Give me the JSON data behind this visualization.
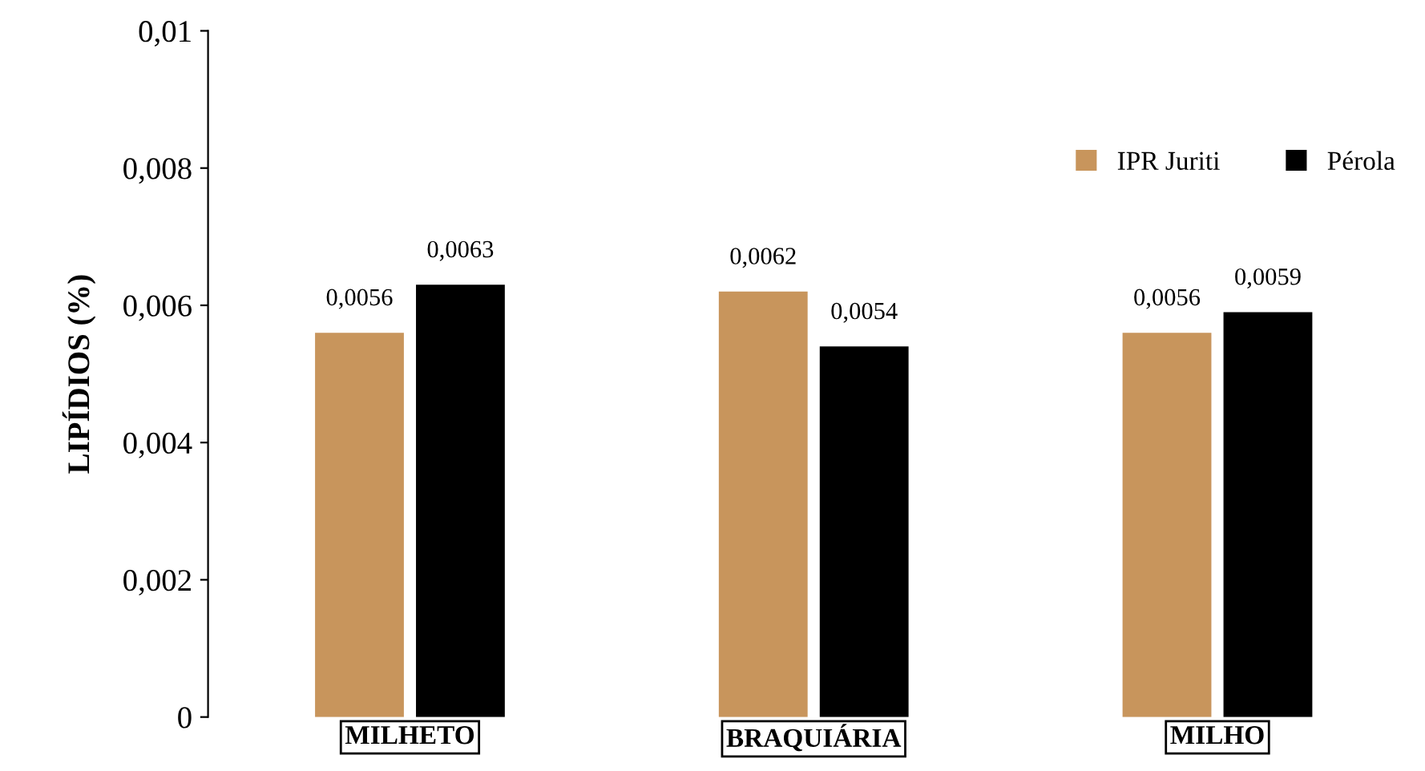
{
  "chart_data": {
    "type": "bar",
    "ylabel": "LIPÍDIOS (%)",
    "categories": [
      "MILHETO",
      "BRAQUIÁRIA",
      "MILHO"
    ],
    "series": [
      {
        "name": "IPR Juriti",
        "color": "#c8955c",
        "values": [
          0.0056,
          0.0062,
          0.0056
        ],
        "value_labels": [
          "0,0056",
          "0,0062",
          "0,0056"
        ]
      },
      {
        "name": "Pérola",
        "color": "#000000",
        "values": [
          0.0063,
          0.0054,
          0.0059
        ],
        "value_labels": [
          "0,0063",
          "0,0054",
          "0,0059"
        ]
      }
    ],
    "ylim": [
      0,
      0.01
    ],
    "yticks": [
      {
        "value": 0,
        "label": "0"
      },
      {
        "value": 0.002,
        "label": "0,002"
      },
      {
        "value": 0.004,
        "label": "0,004"
      },
      {
        "value": 0.006,
        "label": "0,006"
      },
      {
        "value": 0.008,
        "label": "0,008"
      },
      {
        "value": 0.01,
        "label": "0,01"
      }
    ],
    "grid": false,
    "legend": "top right"
  }
}
